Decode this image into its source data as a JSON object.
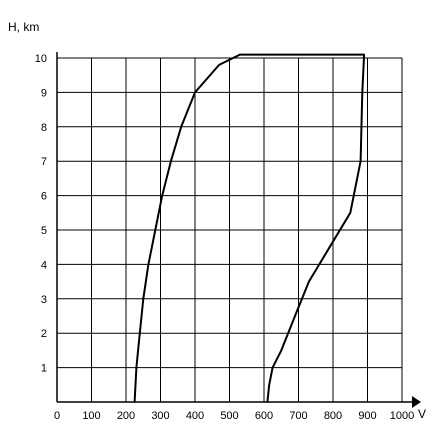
{
  "chart_data": {
    "type": "line",
    "title": "",
    "ylabel": "H, km",
    "xlabel": "V",
    "xlim": [
      0,
      1000
    ],
    "ylim": [
      0,
      10
    ],
    "x_ticks": [
      "0",
      "100",
      "200",
      "300",
      "400",
      "500",
      "600",
      "700",
      "800",
      "900",
      "1000"
    ],
    "y_ticks": [
      "1",
      "2",
      "3",
      "4",
      "5",
      "6",
      "7",
      "8",
      "9",
      "10"
    ],
    "grid": true,
    "series": [
      {
        "points": [
          [
            225,
            0
          ],
          [
            230,
            1
          ],
          [
            240,
            2
          ],
          [
            250,
            3
          ],
          [
            265,
            4
          ],
          [
            285,
            5
          ],
          [
            305,
            6
          ],
          [
            330,
            7
          ],
          [
            360,
            8
          ],
          [
            400,
            9
          ],
          [
            470,
            9.8
          ],
          [
            530,
            10.1
          ],
          [
            700,
            10.1
          ],
          [
            890,
            10.1
          ],
          [
            885,
            9
          ],
          [
            880,
            7
          ],
          [
            850,
            5.5
          ],
          [
            790,
            4.5
          ],
          [
            730,
            3.5
          ],
          [
            690,
            2.5
          ],
          [
            650,
            1.5
          ],
          [
            625,
            1.0
          ],
          [
            615,
            0.5
          ],
          [
            610,
            0
          ]
        ]
      }
    ]
  }
}
